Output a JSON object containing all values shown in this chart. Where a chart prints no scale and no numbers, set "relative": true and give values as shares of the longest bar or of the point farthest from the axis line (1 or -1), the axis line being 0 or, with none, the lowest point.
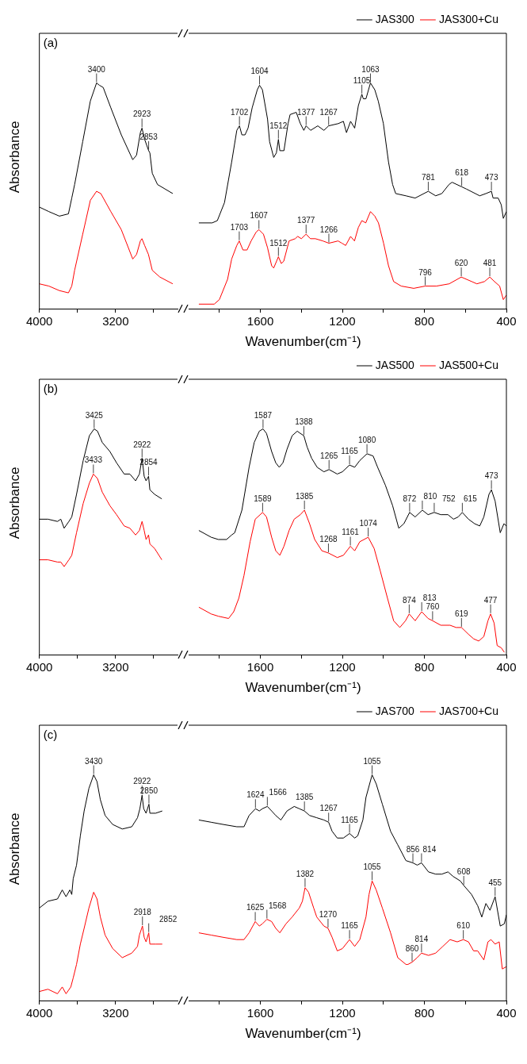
{
  "chart_data": [
    {
      "type": "line",
      "title": "(a)",
      "ylabel": "Absorbance",
      "relative": true,
      "xlim": [
        4000,
        2550
      ],
      "xticks": [
        4000,
        {
          "value": 3600,
          "label": null
        },
        3200,
        {
          "value": 2800,
          "label": null
        }
      ],
      "series": [
        {
          "color": "#000000",
          "x": [
            4000,
            3900,
            3790,
            3695,
            3660,
            3630,
            3545,
            3465,
            3400,
            3370,
            3330,
            3250,
            3140,
            3020,
            2980,
            2940,
            2923,
            2895,
            2853,
            2840,
            2815,
            2760,
            2600
          ],
          "values": [
            0.45,
            0.43,
            0.41,
            0.42,
            0.49,
            0.55,
            0.74,
            0.92,
            1.0,
            0.99,
            0.98,
            0.89,
            0.77,
            0.66,
            0.68,
            0.78,
            0.8,
            0.75,
            0.7,
            0.69,
            0.6,
            0.55,
            0.51
          ]
        },
        {
          "color": "#ff0000",
          "x": [
            4000,
            3900,
            3790,
            3695,
            3660,
            3630,
            3545,
            3465,
            3400,
            3355,
            3250,
            3140,
            3020,
            2980,
            2940,
            2923,
            2895,
            2855,
            2815,
            2735,
            2600
          ],
          "values": [
            0.11,
            0.1,
            0.08,
            0.07,
            0.1,
            0.17,
            0.33,
            0.48,
            0.52,
            0.51,
            0.43,
            0.35,
            0.22,
            0.24,
            0.3,
            0.31,
            0.28,
            0.24,
            0.17,
            0.14,
            0.11
          ]
        }
      ],
      "annotations": [
        {
          "text": "3400",
          "x": 3400,
          "y": 1.0
        },
        {
          "text": "2923",
          "x": 2923,
          "y": 0.8
        },
        {
          "text": "2853",
          "x": 2853,
          "y": 0.7
        }
      ]
    },
    {
      "type": "line",
      "xlabel": "Wavenumber(cm⁻¹)",
      "relative": true,
      "legend": "top right",
      "xlim": [
        1950,
        400
      ],
      "xticks": [
        {
          "value": 1800,
          "label": null
        },
        1600,
        {
          "value": 1400,
          "label": null
        },
        1200,
        {
          "value": 1000,
          "label": null
        },
        800,
        {
          "value": 600,
          "label": null
        },
        400
      ],
      "series": [
        {
          "name": "JAS300",
          "color": "#000000",
          "x": [
            1900,
            1835,
            1810,
            1775,
            1740,
            1715,
            1702,
            1690,
            1675,
            1660,
            1640,
            1615,
            1604,
            1590,
            1565,
            1555,
            1535,
            1522,
            1512,
            1505,
            1485,
            1465,
            1455,
            1425,
            1405,
            1388,
            1377,
            1355,
            1320,
            1290,
            1267,
            1220,
            1195,
            1180,
            1160,
            1140,
            1122,
            1105,
            1098,
            1085,
            1063,
            1042,
            1025,
            1000,
            975,
            955,
            940,
            890,
            845,
            781,
            745,
            715,
            680,
            665,
            618,
            595,
            530,
            500,
            473,
            465,
            440,
            425,
            415,
            400
          ],
          "values": [
            0.38,
            0.38,
            0.39,
            0.47,
            0.65,
            0.79,
            0.81,
            0.77,
            0.77,
            0.8,
            0.89,
            0.97,
            0.99,
            0.97,
            0.84,
            0.74,
            0.67,
            0.69,
            0.75,
            0.7,
            0.7,
            0.82,
            0.86,
            0.87,
            0.82,
            0.79,
            0.81,
            0.79,
            0.81,
            0.79,
            0.81,
            0.82,
            0.83,
            0.78,
            0.83,
            0.8,
            0.9,
            0.95,
            0.93,
            0.93,
            1.0,
            0.97,
            0.92,
            0.82,
            0.65,
            0.55,
            0.51,
            0.5,
            0.49,
            0.52,
            0.5,
            0.51,
            0.55,
            0.56,
            0.54,
            0.53,
            0.5,
            0.51,
            0.52,
            0.49,
            0.49,
            0.46,
            0.4,
            0.43
          ]
        },
        {
          "name": "JAS300+Cu",
          "color": "#ff0000",
          "x": [
            1900,
            1825,
            1800,
            1760,
            1740,
            1715,
            1703,
            1685,
            1665,
            1645,
            1620,
            1607,
            1585,
            1565,
            1545,
            1535,
            1512,
            1498,
            1486,
            1460,
            1430,
            1418,
            1400,
            1377,
            1356,
            1332,
            1295,
            1266,
            1221,
            1202,
            1184,
            1160,
            1141,
            1122,
            1105,
            1086,
            1063,
            1042,
            1024,
            999,
            975,
            950,
            913,
            852,
            796,
            741,
            679,
            620,
            569,
            544,
            507,
            481,
            458,
            433,
            415,
            400
          ],
          "values": [
            0.02,
            0.02,
            0.04,
            0.13,
            0.22,
            0.28,
            0.3,
            0.26,
            0.26,
            0.3,
            0.34,
            0.35,
            0.33,
            0.27,
            0.19,
            0.18,
            0.23,
            0.2,
            0.21,
            0.3,
            0.31,
            0.32,
            0.31,
            0.33,
            0.31,
            0.31,
            0.3,
            0.29,
            0.3,
            0.29,
            0.28,
            0.32,
            0.3,
            0.36,
            0.39,
            0.38,
            0.43,
            0.41,
            0.38,
            0.29,
            0.19,
            0.12,
            0.1,
            0.09,
            0.1,
            0.1,
            0.11,
            0.14,
            0.12,
            0.11,
            0.12,
            0.14,
            0.12,
            0.1,
            0.04,
            0.06
          ]
        }
      ],
      "annotations": [
        {
          "text": "1702",
          "x": 1702,
          "y": 0.81
        },
        {
          "text": "1604",
          "x": 1604,
          "y": 0.99
        },
        {
          "text": "1512",
          "x": 1512,
          "y": 0.75
        },
        {
          "text": "1377",
          "x": 1377,
          "y": 0.81
        },
        {
          "text": "1267",
          "x": 1267,
          "y": 0.81
        },
        {
          "text": "1105",
          "x": 1105,
          "y": 0.95
        },
        {
          "text": "1063",
          "x": 1063,
          "y": 1.0
        },
        {
          "text": "781",
          "x": 781,
          "y": 0.52
        },
        {
          "text": "618",
          "x": 618,
          "y": 0.54
        },
        {
          "text": "473",
          "x": 473,
          "y": 0.52
        },
        {
          "text": "1703",
          "x": 1703,
          "y": 0.3
        },
        {
          "text": "1607",
          "x": 1607,
          "y": 0.35
        },
        {
          "text": "1512",
          "x": 1512,
          "y": 0.23
        },
        {
          "text": "1377",
          "x": 1377,
          "y": 0.33
        },
        {
          "text": "1266",
          "x": 1266,
          "y": 0.29
        },
        {
          "text": "796",
          "x": 796,
          "y": 0.1
        },
        {
          "text": "620",
          "x": 620,
          "y": 0.14
        },
        {
          "text": "481",
          "x": 481,
          "y": 0.14
        }
      ]
    },
    {
      "type": "line",
      "title": "(b)",
      "ylabel": "Absorbance",
      "relative": true,
      "xlim": [
        4000,
        2550
      ],
      "xticks": [
        4000,
        {
          "value": 3600,
          "label": null
        },
        3200,
        {
          "value": 2800,
          "label": null
        }
      ],
      "series": [
        {
          "color": "#000000",
          "x": [
            4000,
            3910,
            3810,
            3775,
            3740,
            3690,
            3660,
            3610,
            3540,
            3475,
            3425,
            3390,
            3340,
            3260,
            3190,
            3110,
            3050,
            2990,
            2950,
            2922,
            2900,
            2880,
            2854,
            2840,
            2790,
            2715
          ],
          "values": [
            0.6,
            0.6,
            0.59,
            0.6,
            0.56,
            0.59,
            0.61,
            0.71,
            0.86,
            0.97,
            1.0,
            0.99,
            0.94,
            0.9,
            0.85,
            0.8,
            0.8,
            0.77,
            0.8,
            0.87,
            0.79,
            0.77,
            0.79,
            0.73,
            0.71,
            0.69
          ]
        },
        {
          "color": "#ff0000",
          "x": [
            4000,
            3910,
            3810,
            3775,
            3740,
            3690,
            3660,
            3610,
            3540,
            3475,
            3433,
            3390,
            3340,
            3260,
            3190,
            3110,
            3050,
            2990,
            2950,
            2922,
            2900,
            2880,
            2854,
            2840,
            2790,
            2715
          ],
          "values": [
            0.42,
            0.42,
            0.41,
            0.41,
            0.39,
            0.42,
            0.44,
            0.54,
            0.67,
            0.76,
            0.8,
            0.78,
            0.72,
            0.66,
            0.62,
            0.57,
            0.56,
            0.53,
            0.55,
            0.59,
            0.55,
            0.51,
            0.53,
            0.49,
            0.47,
            0.42
          ]
        }
      ],
      "annotations": [
        {
          "text": "3425",
          "x": 3425,
          "y": 1.0
        },
        {
          "text": "2922",
          "x": 2922,
          "y": 0.87
        },
        {
          "text": "2854",
          "x": 2854,
          "y": 0.79
        },
        {
          "text": "3433",
          "x": 3433,
          "y": 0.8
        }
      ]
    },
    {
      "type": "line",
      "xlabel": "Wavenumber(cm⁻¹)",
      "relative": true,
      "legend": "top right",
      "xlim": [
        1950,
        400
      ],
      "xticks": [
        {
          "value": 1800,
          "label": null
        },
        1600,
        {
          "value": 1400,
          "label": null
        },
        1200,
        {
          "value": 1000,
          "label": null
        },
        800,
        {
          "value": 600,
          "label": null
        },
        400
      ],
      "series": [
        {
          "name": "JAS500",
          "color": "#000000",
          "x": [
            1900,
            1840,
            1805,
            1765,
            1740,
            1725,
            1690,
            1655,
            1630,
            1605,
            1587,
            1570,
            1545,
            1525,
            1508,
            1490,
            1470,
            1445,
            1420,
            1405,
            1388,
            1372,
            1350,
            1323,
            1290,
            1265,
            1225,
            1200,
            1165,
            1140,
            1115,
            1080,
            1050,
            1028,
            990,
            955,
            925,
            900,
            872,
            845,
            810,
            782,
            752,
            720,
            685,
            658,
            635,
            615,
            585,
            555,
            530,
            510,
            485,
            473,
            455,
            430,
            412,
            400
          ],
          "values": [
            0.55,
            0.52,
            0.51,
            0.51,
            0.53,
            0.54,
            0.64,
            0.83,
            0.94,
            0.99,
            1.0,
            0.98,
            0.9,
            0.85,
            0.83,
            0.85,
            0.91,
            0.97,
            0.99,
            0.98,
            0.97,
            0.92,
            0.87,
            0.83,
            0.81,
            0.82,
            0.8,
            0.81,
            0.84,
            0.83,
            0.86,
            0.89,
            0.88,
            0.83,
            0.75,
            0.66,
            0.56,
            0.58,
            0.63,
            0.61,
            0.64,
            0.62,
            0.63,
            0.62,
            0.62,
            0.6,
            0.61,
            0.63,
            0.6,
            0.58,
            0.57,
            0.61,
            0.71,
            0.73,
            0.68,
            0.54,
            0.58,
            0.57
          ]
        },
        {
          "name": "JAS500+Cu",
          "color": "#ff0000",
          "x": [
            1900,
            1840,
            1805,
            1755,
            1730,
            1705,
            1680,
            1650,
            1625,
            1589,
            1570,
            1545,
            1525,
            1505,
            1485,
            1460,
            1435,
            1405,
            1385,
            1360,
            1335,
            1300,
            1268,
            1225,
            1195,
            1161,
            1140,
            1115,
            1074,
            1045,
            1015,
            980,
            950,
            920,
            892,
            874,
            845,
            813,
            782,
            760,
            720,
            675,
            645,
            619,
            585,
            560,
            535,
            510,
            490,
            477,
            460,
            445,
            425,
            410
          ],
          "values": [
            0.21,
            0.18,
            0.17,
            0.16,
            0.19,
            0.25,
            0.35,
            0.5,
            0.6,
            0.63,
            0.61,
            0.52,
            0.46,
            0.44,
            0.48,
            0.55,
            0.6,
            0.62,
            0.64,
            0.58,
            0.51,
            0.46,
            0.45,
            0.43,
            0.44,
            0.48,
            0.46,
            0.5,
            0.52,
            0.47,
            0.37,
            0.25,
            0.15,
            0.12,
            0.15,
            0.18,
            0.15,
            0.19,
            0.16,
            0.15,
            0.13,
            0.13,
            0.12,
            0.12,
            0.09,
            0.07,
            0.06,
            0.08,
            0.15,
            0.18,
            0.14,
            0.04,
            0.03,
            0.01
          ]
        }
      ],
      "annotations": [
        {
          "text": "1587",
          "x": 1587,
          "y": 1.0
        },
        {
          "text": "1388",
          "x": 1388,
          "y": 0.97
        },
        {
          "text": "1265",
          "x": 1265,
          "y": 0.82
        },
        {
          "text": "1165",
          "x": 1165,
          "y": 0.84
        },
        {
          "text": "1080",
          "x": 1080,
          "y": 0.89
        },
        {
          "text": "872",
          "x": 872,
          "y": 0.63
        },
        {
          "text": "810",
          "x": 810,
          "y": 0.64
        },
        {
          "text": "752",
          "x": 752,
          "y": 0.63
        },
        {
          "text": "615",
          "x": 615,
          "y": 0.63
        },
        {
          "text": "473",
          "x": 473,
          "y": 0.73
        },
        {
          "text": "1589",
          "x": 1589,
          "y": 0.63
        },
        {
          "text": "1385",
          "x": 1385,
          "y": 0.64
        },
        {
          "text": "1268",
          "x": 1268,
          "y": 0.45
        },
        {
          "text": "1161",
          "x": 1161,
          "y": 0.48
        },
        {
          "text": "1074",
          "x": 1074,
          "y": 0.52
        },
        {
          "text": "874",
          "x": 874,
          "y": 0.18
        },
        {
          "text": "813",
          "x": 813,
          "y": 0.19
        },
        {
          "text": "760",
          "x": 760,
          "y": 0.15
        },
        {
          "text": "619",
          "x": 619,
          "y": 0.12
        },
        {
          "text": "477",
          "x": 477,
          "y": 0.18
        }
      ]
    },
    {
      "type": "line",
      "title": "(c)",
      "ylabel": "Absorbance",
      "relative": true,
      "xlim": [
        4000,
        2550
      ],
      "xticks": [
        4000,
        {
          "value": 3600,
          "label": null
        },
        3200,
        {
          "value": 2800,
          "label": null
        }
      ],
      "series": [
        {
          "color": "#000000",
          "x": [
            4000,
            3910,
            3810,
            3760,
            3720,
            3680,
            3660,
            3645,
            3610,
            3570,
            3530,
            3480,
            3430,
            3395,
            3360,
            3310,
            3230,
            3130,
            3030,
            2970,
            2945,
            2922,
            2905,
            2880,
            2850,
            2840,
            2780,
            2710
          ],
          "values": [
            0.41,
            0.44,
            0.45,
            0.49,
            0.46,
            0.49,
            0.47,
            0.54,
            0.6,
            0.73,
            0.84,
            0.94,
            1.0,
            0.97,
            0.89,
            0.82,
            0.78,
            0.76,
            0.77,
            0.81,
            0.85,
            0.91,
            0.85,
            0.83,
            0.87,
            0.83,
            0.83,
            0.84
          ]
        },
        {
          "color": "#ff0000",
          "x": [
            4000,
            3910,
            3810,
            3760,
            3720,
            3670,
            3645,
            3610,
            3570,
            3530,
            3480,
            3430,
            3395,
            3360,
            3310,
            3230,
            3130,
            3030,
            2970,
            2950,
            2918,
            2900,
            2880,
            2852,
            2840,
            2780,
            2710
          ],
          "values": [
            0.04,
            0.05,
            0.03,
            0.06,
            0.03,
            0.06,
            0.1,
            0.16,
            0.25,
            0.32,
            0.41,
            0.48,
            0.45,
            0.37,
            0.29,
            0.23,
            0.19,
            0.21,
            0.24,
            0.29,
            0.33,
            0.28,
            0.26,
            0.3,
            0.25,
            0.25,
            0.25
          ]
        }
      ],
      "annotations": [
        {
          "text": "3430",
          "x": 3430,
          "y": 1.0
        },
        {
          "text": "2922",
          "x": 2922,
          "y": 0.91
        },
        {
          "text": "2850",
          "x": 2850,
          "y": 0.87
        },
        {
          "text": "2918",
          "x": 2918,
          "y": 0.33
        },
        {
          "text": "2852",
          "x": 2852,
          "y": 0.3
        }
      ]
    },
    {
      "type": "line",
      "xlabel": "Wavenumber(cm⁻¹)",
      "relative": true,
      "legend": "top right",
      "xlim": [
        1950,
        400
      ],
      "xticks": [
        {
          "value": 1800,
          "label": null
        },
        1600,
        {
          "value": 1400,
          "label": null
        },
        1200,
        {
          "value": 1000,
          "label": null
        },
        800,
        {
          "value": 600,
          "label": null
        },
        400
      ],
      "series": [
        {
          "name": "JAS700",
          "color": "#000000",
          "x": [
            1900,
            1840,
            1780,
            1715,
            1680,
            1655,
            1624,
            1605,
            1590,
            1566,
            1545,
            1525,
            1500,
            1470,
            1435,
            1410,
            1385,
            1360,
            1325,
            1290,
            1267,
            1250,
            1225,
            1195,
            1165,
            1140,
            1125,
            1100,
            1085,
            1055,
            1035,
            1005,
            965,
            930,
            890,
            856,
            835,
            814,
            780,
            745,
            715,
            685,
            660,
            625,
            608,
            570,
            540,
            520,
            500,
            480,
            455,
            430,
            410,
            400
          ],
          "values": [
            0.8,
            0.79,
            0.78,
            0.77,
            0.77,
            0.82,
            0.85,
            0.84,
            0.85,
            0.86,
            0.84,
            0.82,
            0.8,
            0.84,
            0.86,
            0.85,
            0.84,
            0.82,
            0.81,
            0.8,
            0.79,
            0.75,
            0.72,
            0.72,
            0.74,
            0.72,
            0.73,
            0.8,
            0.9,
            1.0,
            0.96,
            0.87,
            0.75,
            0.69,
            0.62,
            0.61,
            0.6,
            0.61,
            0.57,
            0.56,
            0.56,
            0.57,
            0.55,
            0.53,
            0.51,
            0.47,
            0.42,
            0.37,
            0.43,
            0.4,
            0.46,
            0.33,
            0.34,
            0.38
          ]
        },
        {
          "name": "JAS700+Cu",
          "color": "#ff0000",
          "x": [
            1900,
            1840,
            1780,
            1715,
            1680,
            1655,
            1625,
            1605,
            1590,
            1568,
            1545,
            1525,
            1505,
            1475,
            1445,
            1410,
            1395,
            1382,
            1365,
            1340,
            1325,
            1290,
            1270,
            1250,
            1225,
            1200,
            1165,
            1140,
            1115,
            1085,
            1070,
            1055,
            1035,
            1005,
            965,
            930,
            890,
            880,
            860,
            835,
            814,
            780,
            745,
            710,
            675,
            640,
            610,
            585,
            560,
            540,
            510,
            490,
            475,
            455,
            435,
            420,
            400
          ],
          "values": [
            0.3,
            0.29,
            0.28,
            0.27,
            0.27,
            0.3,
            0.35,
            0.33,
            0.34,
            0.36,
            0.35,
            0.32,
            0.3,
            0.34,
            0.37,
            0.41,
            0.44,
            0.5,
            0.48,
            0.41,
            0.37,
            0.33,
            0.32,
            0.28,
            0.22,
            0.23,
            0.27,
            0.24,
            0.27,
            0.37,
            0.47,
            0.53,
            0.49,
            0.41,
            0.3,
            0.19,
            0.16,
            0.16,
            0.17,
            0.19,
            0.21,
            0.2,
            0.21,
            0.24,
            0.27,
            0.26,
            0.27,
            0.26,
            0.22,
            0.22,
            0.18,
            0.26,
            0.27,
            0.25,
            0.26,
            0.14,
            0.15
          ]
        }
      ],
      "annotations": [
        {
          "text": "1624",
          "x": 1624,
          "y": 0.85
        },
        {
          "text": "1566",
          "x": 1566,
          "y": 0.86
        },
        {
          "text": "1385",
          "x": 1385,
          "y": 0.84
        },
        {
          "text": "1267",
          "x": 1267,
          "y": 0.79
        },
        {
          "text": "1165",
          "x": 1165,
          "y": 0.74
        },
        {
          "text": "1055",
          "x": 1055,
          "y": 1.0
        },
        {
          "text": "856",
          "x": 856,
          "y": 0.61
        },
        {
          "text": "814",
          "x": 814,
          "y": 0.61
        },
        {
          "text": "608",
          "x": 608,
          "y": 0.51
        },
        {
          "text": "455",
          "x": 455,
          "y": 0.46
        },
        {
          "text": "1625",
          "x": 1625,
          "y": 0.35
        },
        {
          "text": "1568",
          "x": 1568,
          "y": 0.36
        },
        {
          "text": "1382",
          "x": 1382,
          "y": 0.5
        },
        {
          "text": "1270",
          "x": 1270,
          "y": 0.32
        },
        {
          "text": "1165",
          "x": 1165,
          "y": 0.27
        },
        {
          "text": "1055",
          "x": 1055,
          "y": 0.53
        },
        {
          "text": "860",
          "x": 860,
          "y": 0.17
        },
        {
          "text": "814",
          "x": 814,
          "y": 0.21
        },
        {
          "text": "610",
          "x": 610,
          "y": 0.27
        }
      ]
    }
  ]
}
